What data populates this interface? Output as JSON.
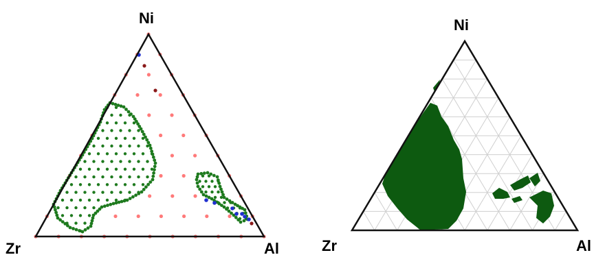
{
  "panels": [
    {
      "id": "left",
      "vertices": {
        "top": "Ni",
        "left": "Zr",
        "right": "Al"
      },
      "style": "sampled-points",
      "colors": {
        "region": "#1e7a1e",
        "grid_point": "#ff7a7a",
        "special_point": "#1f2fd0",
        "dark_point": "#8a1a1a"
      }
    },
    {
      "id": "right",
      "vertices": {
        "top": "Ni",
        "left": "Zr",
        "right": "Al"
      },
      "style": "filled-regions",
      "colors": {
        "region": "#0d5a10",
        "grid_line": "#cfcfcf"
      }
    }
  ]
}
